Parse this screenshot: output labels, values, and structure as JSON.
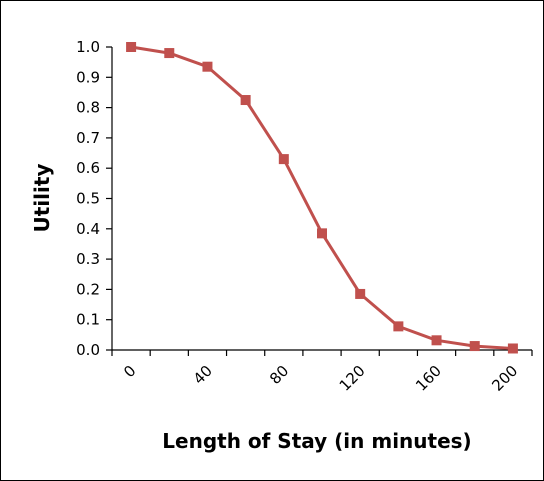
{
  "chart_data": {
    "type": "line",
    "title": "",
    "xlabel": "Length of Stay (in minutes)",
    "ylabel": "Utility",
    "x_tick_labels": [
      "0",
      "40",
      "80",
      "120",
      "160",
      "200"
    ],
    "y_tick_labels": [
      "0.0",
      "0.1",
      "0.2",
      "0.3",
      "0.4",
      "0.5",
      "0.6",
      "0.7",
      "0.8",
      "0.9",
      "1.0"
    ],
    "ylim": [
      0,
      1
    ],
    "grid": false,
    "legend": "none",
    "series": [
      {
        "color": "#c0504d",
        "marker": "square",
        "x": [
          0,
          20,
          40,
          60,
          80,
          100,
          120,
          140,
          160,
          180,
          200
        ],
        "y": [
          1.0,
          0.98,
          0.935,
          0.825,
          0.63,
          0.385,
          0.185,
          0.078,
          0.032,
          0.013,
          0.005
        ]
      }
    ]
  }
}
